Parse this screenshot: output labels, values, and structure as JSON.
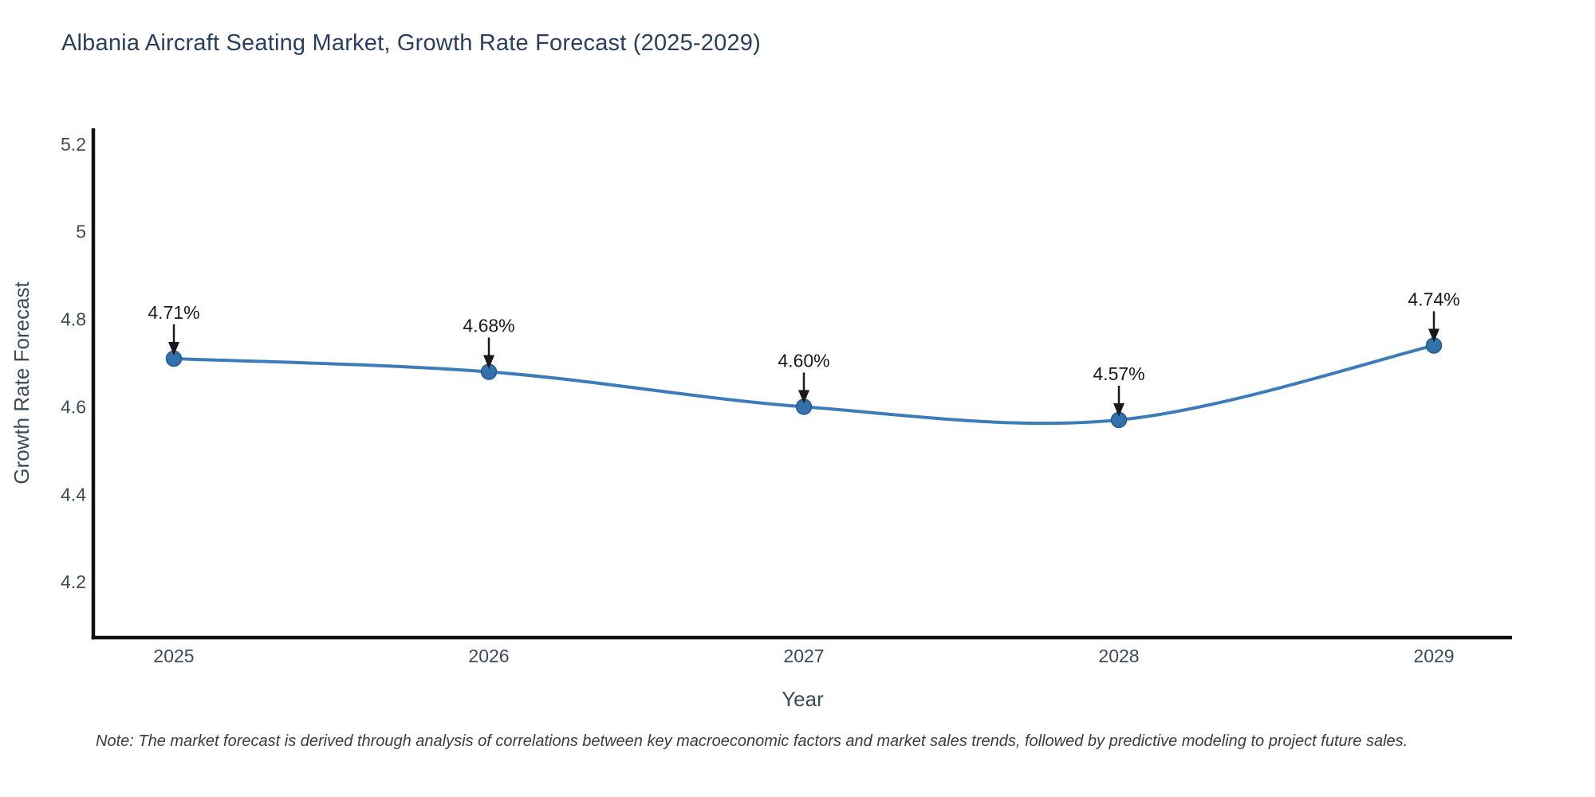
{
  "title": "Albania Aircraft Seating Market, Growth Rate Forecast (2025-2029)",
  "note": "Note: The market forecast is derived through analysis of correlations between key macroeconomic factors and market sales trends, followed by predictive modeling to project future sales.",
  "chart_data": {
    "type": "line",
    "title": "Albania Aircraft Seating Market, Growth Rate Forecast (2025-2029)",
    "x": [
      "2025",
      "2026",
      "2027",
      "2028",
      "2029"
    ],
    "values": [
      4.71,
      4.68,
      4.6,
      4.57,
      4.74
    ],
    "point_labels": [
      "4.71%",
      "4.68%",
      "4.60%",
      "4.57%",
      "4.74%"
    ],
    "xlabel": "Year",
    "ylabel": "Growth Rate Forecast",
    "y_ticks": [
      4.2,
      4.4,
      4.6,
      4.8,
      5,
      5.2
    ],
    "y_tick_labels": [
      "4.2",
      "4.4",
      "4.6",
      "4.8",
      "5",
      "5.2"
    ],
    "ylim": [
      4.073,
      5.236
    ],
    "line_shape": "spline",
    "grid": false,
    "legend": "none",
    "colors": {
      "line": "#3d7cba",
      "marker": "#3271aa",
      "marker_edge": "#265d8f",
      "axis": "#111111",
      "title": "#2a3f5f",
      "tick": "#3d4a5c",
      "annotation": "#1a1a1a"
    }
  }
}
